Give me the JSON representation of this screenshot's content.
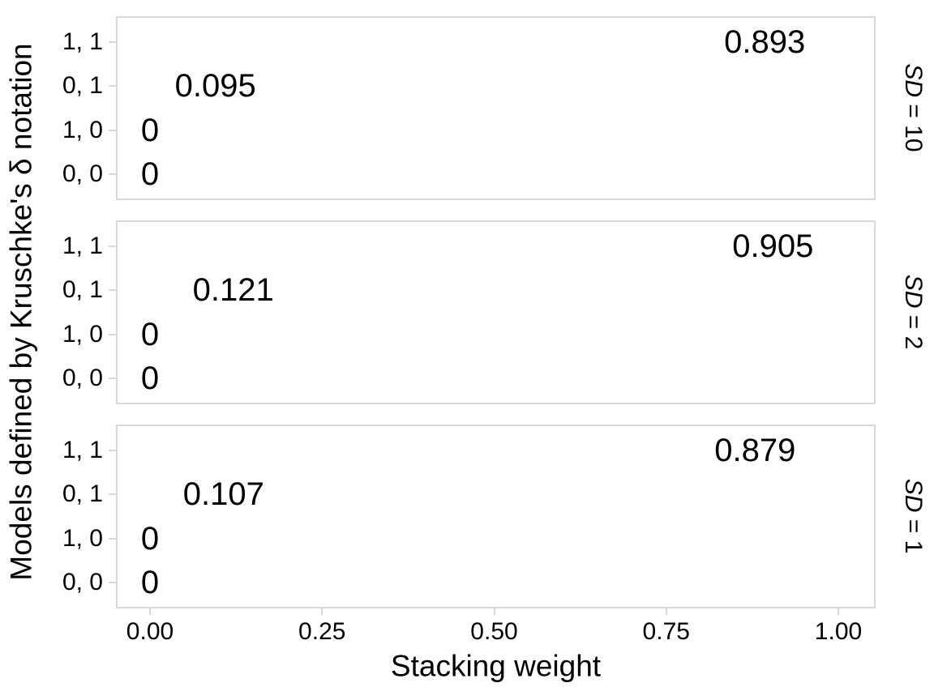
{
  "colors": {
    "background": "#ffffff",
    "panel_border": "#d9d9d9",
    "tick_mark": "#d9d9d9",
    "text": "#000000"
  },
  "chart_data": {
    "type": "scatter",
    "subtype": "text-labels-on-categorical-rows",
    "title": "",
    "legend": "none",
    "grid": false,
    "x_axis": {
      "label": "Stacking weight",
      "range": [
        0,
        1
      ],
      "ticks": [
        {
          "value": 0.0,
          "label": "0.00"
        },
        {
          "value": 0.25,
          "label": "0.25"
        },
        {
          "value": 0.5,
          "label": "0.50"
        },
        {
          "value": 0.75,
          "label": "0.75"
        },
        {
          "value": 1.0,
          "label": "1.00"
        }
      ]
    },
    "y_axis": {
      "label": "Models defined by Kruschke's δ notation",
      "categories": [
        "1, 1",
        "0, 1",
        "1, 0",
        "0, 0"
      ]
    },
    "facets": [
      {
        "strip_label": "SD = 10",
        "strip_italic": "SD",
        "strip_rest": " = 10",
        "points": [
          {
            "category": "1, 1",
            "x": 0.893,
            "label": "0.893"
          },
          {
            "category": "0, 1",
            "x": 0.095,
            "label": "0.095"
          },
          {
            "category": "1, 0",
            "x": 0,
            "label": "0"
          },
          {
            "category": "0, 0",
            "x": 0,
            "label": "0"
          }
        ]
      },
      {
        "strip_label": "SD = 2",
        "strip_italic": "SD",
        "strip_rest": " = 2",
        "points": [
          {
            "category": "1, 1",
            "x": 0.905,
            "label": "0.905"
          },
          {
            "category": "0, 1",
            "x": 0.121,
            "label": "0.121"
          },
          {
            "category": "1, 0",
            "x": 0,
            "label": "0"
          },
          {
            "category": "0, 0",
            "x": 0,
            "label": "0"
          }
        ]
      },
      {
        "strip_label": "SD = 1",
        "strip_italic": "SD",
        "strip_rest": " = 1",
        "points": [
          {
            "category": "1, 1",
            "x": 0.879,
            "label": "0.879"
          },
          {
            "category": "0, 1",
            "x": 0.107,
            "label": "0.107"
          },
          {
            "category": "1, 0",
            "x": 0,
            "label": "0"
          },
          {
            "category": "0, 0",
            "x": 0,
            "label": "0"
          }
        ]
      }
    ]
  }
}
